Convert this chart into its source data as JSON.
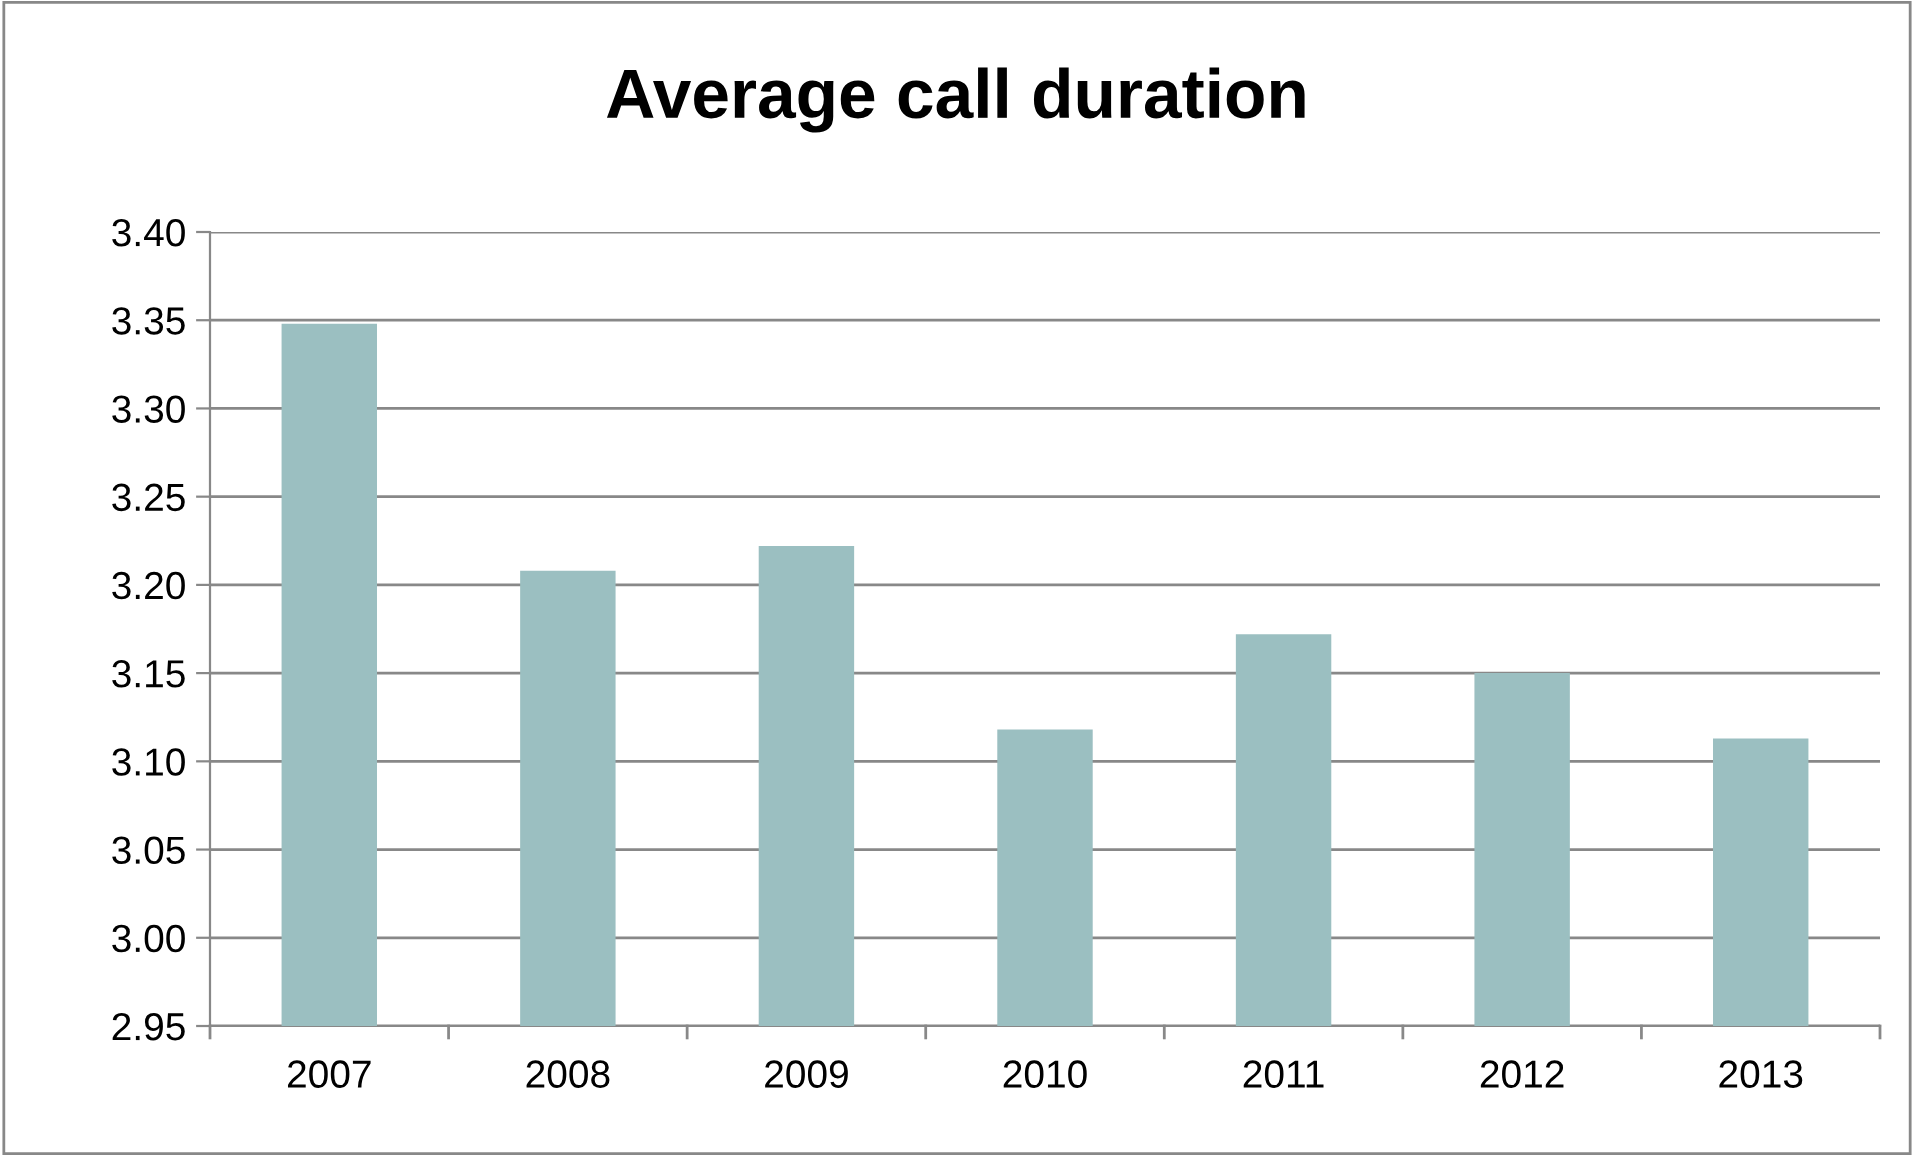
{
  "chart_data": {
    "type": "bar",
    "title": "Average call duration",
    "categories": [
      "2007",
      "2008",
      "2009",
      "2010",
      "2011",
      "2012",
      "2013"
    ],
    "values": [
      3.348,
      3.208,
      3.222,
      3.118,
      3.172,
      3.15,
      3.113
    ],
    "color": "#9bbfc1",
    "ylim": [
      2.95,
      3.4
    ],
    "yticks": [
      {
        "value": 2.95,
        "label": "2.95"
      },
      {
        "value": 3.0,
        "label": "3.00"
      },
      {
        "value": 3.05,
        "label": "3.05"
      },
      {
        "value": 3.1,
        "label": "3.10"
      },
      {
        "value": 3.15,
        "label": "3.15"
      },
      {
        "value": 3.2,
        "label": "3.20"
      },
      {
        "value": 3.25,
        "label": "3.25"
      },
      {
        "value": 3.3,
        "label": "3.30"
      },
      {
        "value": 3.35,
        "label": "3.35"
      },
      {
        "value": 3.4,
        "label": "3.40"
      }
    ],
    "grid": "y",
    "legend": false
  }
}
